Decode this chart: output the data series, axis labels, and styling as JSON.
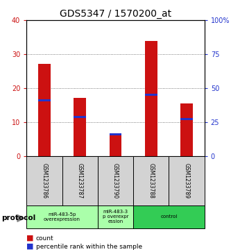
{
  "title": "GDS5347 / 1570200_at",
  "samples": [
    "GSM1233786",
    "GSM1233787",
    "GSM1233790",
    "GSM1233788",
    "GSM1233789"
  ],
  "red_values": [
    27.2,
    17.2,
    6.2,
    33.8,
    15.6
  ],
  "blue_values": [
    16.5,
    11.5,
    6.5,
    18.0,
    11.0
  ],
  "ylim_left": [
    0,
    40
  ],
  "ylim_right": [
    0,
    100
  ],
  "yticks_left": [
    0,
    10,
    20,
    30,
    40
  ],
  "yticks_right": [
    0,
    25,
    50,
    75,
    100
  ],
  "bar_color": "#cc1111",
  "blue_color": "#2233cc",
  "protocol_groups": [
    {
      "label": "miR-483-5p\noverexpression",
      "start": 0,
      "end": 1,
      "color": "#aaffaa"
    },
    {
      "label": "miR-483-3\np overexpr\nession",
      "start": 2,
      "end": 2,
      "color": "#aaffaa"
    },
    {
      "label": "control",
      "start": 3,
      "end": 4,
      "color": "#33cc55"
    }
  ],
  "protocol_label": "protocol",
  "legend_count": "count",
  "legend_percentile": "percentile rank within the sample",
  "bg_color": "#ffffff",
  "plot_bg": "#ffffff",
  "bar_width": 0.35,
  "title_fontsize": 10,
  "tick_fontsize": 7,
  "axis_color_left": "#cc1111",
  "axis_color_right": "#2233cc",
  "grid_color": "#555555",
  "sample_box_color": "#d3d3d3"
}
